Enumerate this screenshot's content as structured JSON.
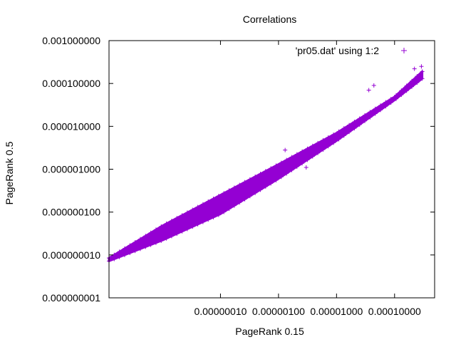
{
  "chart_data": {
    "type": "scatter",
    "title": "Correlations",
    "xlabel": "PageRank 0.15",
    "ylabel": "PageRank 0.5",
    "x_scale": "log",
    "y_scale": "log",
    "xlim": [
      1.2e-09,
      0.00049
    ],
    "ylim": [
      1e-09,
      0.001
    ],
    "x_ticks": [
      "0.00000010",
      "0.00000100",
      "0.00001000",
      "0.00010000"
    ],
    "x_tick_values": [
      1e-07,
      1e-06,
      1e-05,
      0.0001
    ],
    "y_ticks": [
      "0.000000001",
      "0.000000010",
      "0.000000100",
      "0.000001000",
      "0.000010000",
      "0.000100000",
      "0.001000000"
    ],
    "y_tick_values": [
      1e-09,
      1e-08,
      1e-07,
      1e-06,
      1e-05,
      0.0001,
      0.001
    ],
    "grid": false,
    "legend_position": "top-right",
    "series": [
      {
        "name": "'pr05.dat' using 1:2",
        "color": "#9400d3",
        "marker": "plus",
        "band": {
          "x": [
            1.2e-09,
            1e-08,
            1e-07,
            1e-06,
            1e-05,
            0.0001,
            0.0003
          ],
          "y_low": [
            7.2e-09,
            2.2e-08,
            9e-08,
            6e-07,
            4.6e-06,
            4.1e-05,
            0.00013
          ],
          "y_high": [
            8.5e-09,
            4.8e-08,
            2.5e-07,
            1.3e-06,
            7e-06,
            4.9e-05,
            0.00019
          ]
        },
        "outliers": [
          {
            "x": 0.00029,
            "y": 0.00025
          },
          {
            "x": 0.00022,
            "y": 0.00022
          },
          {
            "x": 4.4e-05,
            "y": 9e-05
          },
          {
            "x": 3.6e-05,
            "y": 7e-05
          },
          {
            "x": 1.3e-06,
            "y": 2.8e-06
          },
          {
            "x": 3e-06,
            "y": 1.1e-06
          },
          {
            "x": 3.5e-07,
            "y": 5.5e-07
          },
          {
            "x": 4.8e-09,
            "y": 2.1e-08
          }
        ]
      }
    ]
  }
}
